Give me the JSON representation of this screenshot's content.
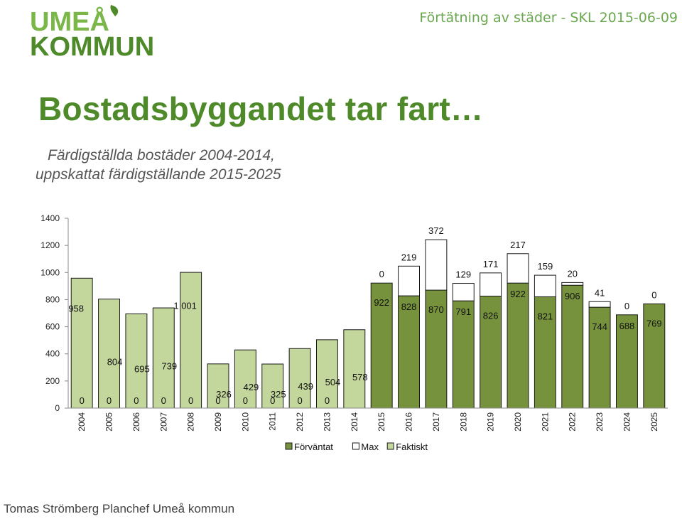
{
  "logo": {
    "line1": "UMEÅ",
    "line2": "KOMMUN"
  },
  "header": {
    "right_text": "Förtätning av städer - SKL 2015-06-09"
  },
  "title": "Bostadsbyggandet tar fart…",
  "subtitle": [
    "Färdigställda bostäder 2004-2014,",
    "uppskattat färdigställande 2015-2025"
  ],
  "footer": "Tomas Strömberg Planchef Umeå kommun",
  "colors": {
    "forvantat": "#76923c",
    "max": "#ffffff",
    "faktiskt": "#c3d69b",
    "brand": "#6aa84f",
    "title": "#4e8a2a"
  },
  "chart_data": {
    "type": "bar",
    "stacked": true,
    "categories": [
      "2004",
      "2005",
      "2006",
      "2007",
      "2008",
      "2009",
      "2010",
      "2011",
      "2012",
      "2013",
      "2014",
      "2015",
      "2016",
      "2017",
      "2018",
      "2019",
      "2020",
      "2021",
      "2022",
      "2023",
      "2024",
      "2025"
    ],
    "series": [
      {
        "name": "Förväntat",
        "values": [
          0,
          0,
          0,
          0,
          0,
          0,
          0,
          0,
          0,
          0,
          null,
          922,
          828,
          870,
          791,
          826,
          922,
          821,
          906,
          744,
          688,
          769
        ],
        "labels": [
          "0",
          "0",
          "0",
          "0",
          "0",
          "0",
          "0",
          "0",
          "0",
          "0",
          "",
          "922",
          "828",
          "870",
          "791",
          "826",
          "922",
          "821",
          "906",
          "744",
          "688",
          "769"
        ]
      },
      {
        "name": "Max",
        "values": [
          null,
          null,
          null,
          null,
          null,
          null,
          null,
          null,
          null,
          null,
          null,
          0,
          219,
          372,
          129,
          171,
          217,
          159,
          20,
          41,
          0,
          0
        ],
        "labels": [
          "",
          "",
          "",
          "",
          "",
          "",
          "",
          "",
          "",
          "",
          "",
          "0",
          "219",
          "372",
          "129",
          "171",
          "217",
          "159",
          "20",
          "41",
          "0",
          "0"
        ]
      },
      {
        "name": "Faktiskt",
        "values": [
          958,
          804,
          695,
          739,
          1001,
          326,
          429,
          325,
          439,
          504,
          578,
          null,
          null,
          null,
          null,
          null,
          null,
          null,
          null,
          null,
          null,
          null
        ],
        "labels": [
          "958",
          "804",
          "695",
          "739",
          "1 001",
          "326",
          "429",
          "325",
          "439",
          "504",
          "578",
          "",
          "",
          "",
          "",
          "",
          "",
          "",
          "",
          "",
          "",
          ""
        ]
      }
    ],
    "ylim": [
      0,
      1400
    ],
    "yticks": [
      "0",
      "200",
      "400",
      "600",
      "800",
      "1000",
      "1200",
      "1400"
    ],
    "xlabel": "",
    "ylabel": "",
    "grid": false,
    "legend_position": "bottom"
  }
}
